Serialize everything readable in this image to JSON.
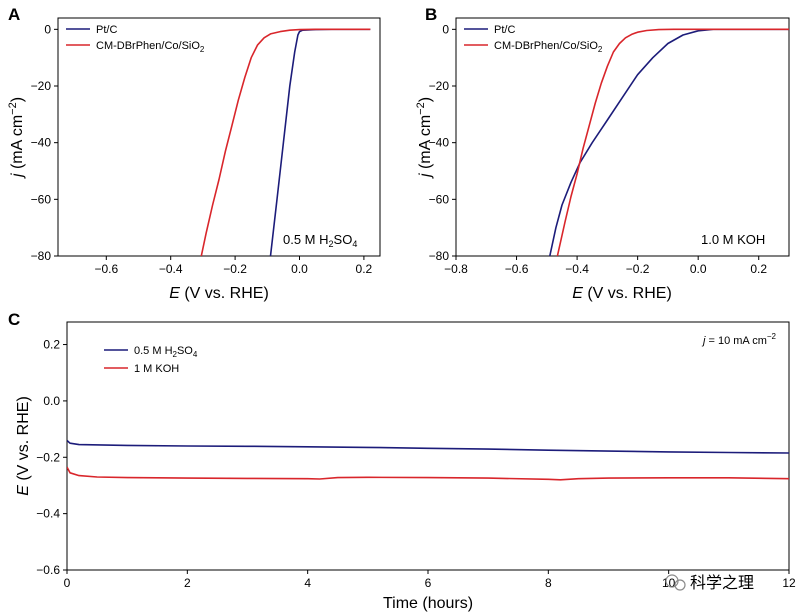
{
  "colors": {
    "pt": "#1c1c7a",
    "cm": "#d9262b",
    "acid": "#1c1c7a",
    "base": "#d9262b",
    "axis": "#000000",
    "watermark": "#8a8a8a"
  },
  "watermark": "科学之理",
  "chart_data": [
    {
      "panel": "A",
      "type": "line",
      "xlabel": "E (V vs. RHE)",
      "ylabel": "j (mA cm−2)",
      "xlim": [
        -0.75,
        0.25
      ],
      "ylim": [
        -80,
        4
      ],
      "xticks": [
        -0.6,
        -0.4,
        -0.2,
        0.0,
        0.2
      ],
      "xtick_labels": [
        "−0.6",
        "−0.4",
        "−0.2",
        "0.0",
        "0.2"
      ],
      "yticks": [
        0,
        -20,
        -40,
        -60,
        -80
      ],
      "ytick_labels": [
        "0",
        "−20",
        "−40",
        "−60",
        "−80"
      ],
      "annotation": "0.5 M H2SO4",
      "legend": "top-left",
      "series": [
        {
          "name": "Pt/C",
          "color": "#1c1c7a",
          "x": [
            -0.09,
            -0.07,
            -0.05,
            -0.03,
            -0.015,
            -0.005,
            0.0,
            0.01,
            0.05,
            0.1,
            0.15,
            0.2,
            0.22
          ],
          "y": [
            -80,
            -60,
            -40,
            -20,
            -8,
            -2,
            -0.8,
            -0.3,
            -0.1,
            0,
            0,
            0,
            0
          ]
        },
        {
          "name": "CM-DBrPhen/Co/SiO2",
          "color": "#d9262b",
          "x": [
            -0.305,
            -0.29,
            -0.27,
            -0.25,
            -0.23,
            -0.21,
            -0.19,
            -0.17,
            -0.15,
            -0.13,
            -0.11,
            -0.09,
            -0.06,
            -0.03,
            0.0,
            0.05,
            0.1,
            0.15,
            0.2,
            0.22
          ],
          "y": [
            -80,
            -72,
            -62,
            -53,
            -43,
            -34,
            -25,
            -17,
            -10,
            -5.5,
            -3,
            -1.6,
            -0.8,
            -0.3,
            -0.1,
            0,
            0,
            0,
            0,
            0
          ]
        }
      ]
    },
    {
      "panel": "B",
      "type": "line",
      "xlabel": "E (V vs. RHE)",
      "ylabel": "j (mA cm−2)",
      "xlim": [
        -0.8,
        0.3
      ],
      "ylim": [
        -80,
        4
      ],
      "xticks": [
        -0.8,
        -0.6,
        -0.4,
        -0.2,
        0.0,
        0.2
      ],
      "xtick_labels": [
        "−0.8",
        "−0.6",
        "−0.4",
        "−0.2",
        "0.0",
        "0.2"
      ],
      "yticks": [
        0,
        -20,
        -40,
        -60,
        -80
      ],
      "ytick_labels": [
        "0",
        "−20",
        "−40",
        "−60",
        "−80"
      ],
      "annotation": "1.0 M KOH",
      "legend": "top-left",
      "series": [
        {
          "name": "Pt/C",
          "color": "#1c1c7a",
          "x": [
            -0.49,
            -0.47,
            -0.45,
            -0.42,
            -0.39,
            -0.35,
            -0.3,
            -0.25,
            -0.2,
            -0.15,
            -0.1,
            -0.05,
            0.0,
            0.05,
            0.1,
            0.2,
            0.3
          ],
          "y": [
            -80,
            -70,
            -62,
            -54,
            -47,
            -40,
            -32,
            -24,
            -16,
            -10,
            -5,
            -2,
            -0.5,
            0,
            0,
            0,
            0
          ]
        },
        {
          "name": "CM-DBrPhen/Co/SiO2",
          "color": "#d9262b",
          "x": [
            -0.465,
            -0.44,
            -0.42,
            -0.4,
            -0.38,
            -0.36,
            -0.34,
            -0.32,
            -0.3,
            -0.28,
            -0.26,
            -0.24,
            -0.22,
            -0.2,
            -0.17,
            -0.13,
            -0.08,
            0.0,
            0.1,
            0.2,
            0.3
          ],
          "y": [
            -80,
            -68,
            -59,
            -51,
            -42,
            -34,
            -26,
            -19,
            -13,
            -8,
            -5,
            -3,
            -1.8,
            -1,
            -0.4,
            -0.1,
            0,
            0,
            0,
            0,
            0
          ]
        }
      ]
    },
    {
      "panel": "C",
      "type": "line",
      "xlabel": "Time (hours)",
      "ylabel": "E (V vs. RHE)",
      "xlim": [
        0,
        12
      ],
      "ylim": [
        -0.6,
        0.28
      ],
      "xticks": [
        0,
        2,
        4,
        6,
        8,
        10,
        12
      ],
      "xtick_labels": [
        "0",
        "2",
        "4",
        "6",
        "8",
        "10",
        "12"
      ],
      "yticks": [
        0.2,
        0.0,
        -0.2,
        -0.4,
        -0.6
      ],
      "ytick_labels": [
        "0.2",
        "0.0",
        "−0.2",
        "−0.4",
        "−0.6"
      ],
      "annotation": "j = 10 mA cm−2",
      "legend": "top-left",
      "series": [
        {
          "name": "0.5 M H2SO4",
          "color": "#1c1c7a",
          "x": [
            0,
            0.05,
            0.2,
            1,
            2,
            3,
            4,
            5,
            6,
            7,
            8,
            9,
            10,
            11,
            12
          ],
          "y": [
            -0.14,
            -0.15,
            -0.155,
            -0.158,
            -0.16,
            -0.161,
            -0.163,
            -0.165,
            -0.168,
            -0.171,
            -0.175,
            -0.178,
            -0.181,
            -0.183,
            -0.185
          ]
        },
        {
          "name": "1 M KOH",
          "color": "#d9262b",
          "x": [
            0,
            0.05,
            0.2,
            0.5,
            1,
            2,
            3,
            4,
            4.2,
            4.5,
            5,
            6,
            7,
            8,
            8.2,
            8.5,
            9,
            10,
            11,
            12
          ],
          "y": [
            -0.235,
            -0.255,
            -0.265,
            -0.27,
            -0.272,
            -0.274,
            -0.275,
            -0.276,
            -0.277,
            -0.272,
            -0.271,
            -0.272,
            -0.274,
            -0.278,
            -0.28,
            -0.276,
            -0.274,
            -0.273,
            -0.273,
            -0.276
          ]
        }
      ]
    }
  ]
}
